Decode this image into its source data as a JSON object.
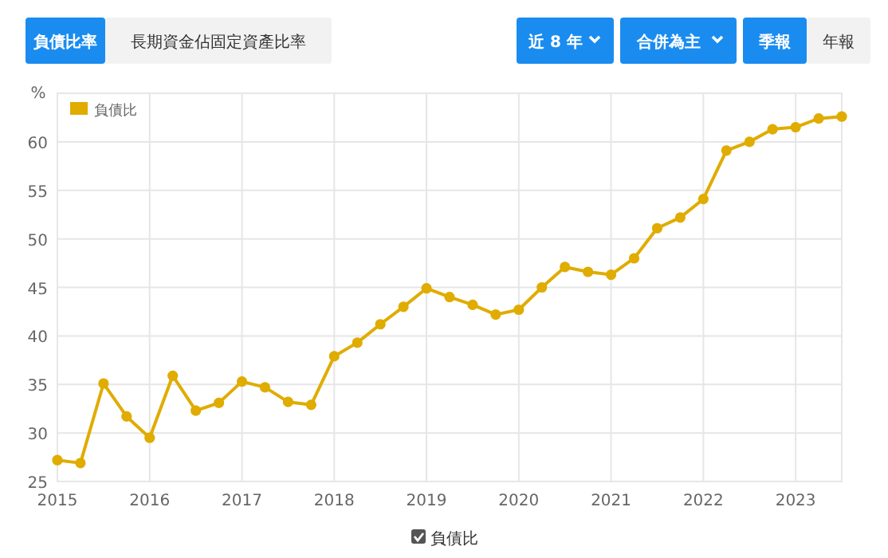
{
  "chart_data": {
    "type": "line",
    "ylabel": "%",
    "annotations": [
      "負債比率",
      "長期資金佔固定資產比率",
      "近 8 年",
      "合併為主",
      "季報",
      "年報"
    ],
    "x": [
      2015,
      2015.25,
      2015.5,
      2015.75,
      2016,
      2016.25,
      2016.5,
      2016.75,
      2017,
      2017.25,
      2017.5,
      2017.75,
      2018,
      2018.25,
      2018.5,
      2018.75,
      2019,
      2019.25,
      2019.5,
      2019.75,
      2020,
      2020.25,
      2020.5,
      2020.75,
      2021,
      2021.25,
      2021.5,
      2021.75,
      2022,
      2022.25,
      2022.5,
      2022.75,
      2023,
      2023.25,
      2023.5
    ],
    "series": [
      {
        "name": "負債比",
        "color": "#e0ac00",
        "values": [
          27.2,
          26.9,
          35.1,
          31.7,
          29.5,
          35.9,
          32.3,
          33.1,
          35.3,
          34.7,
          33.2,
          32.9,
          37.9,
          39.3,
          41.2,
          43.0,
          44.9,
          44.0,
          43.2,
          42.2,
          42.7,
          45.0,
          47.1,
          46.6,
          46.3,
          48.0,
          51.1,
          52.2,
          54.1,
          59.1,
          60.0,
          61.3,
          61.5,
          62.4,
          62.6
        ]
      }
    ],
    "xlim": [
      2015,
      2023.5
    ],
    "xticks": [
      2015,
      2016,
      2017,
      2018,
      2019,
      2020,
      2021,
      2022,
      2023
    ],
    "ylim": [
      25,
      65
    ],
    "yticks": [
      25,
      30,
      35,
      40,
      45,
      50,
      55,
      60
    ],
    "grid": true,
    "legend": "top left",
    "marker": "circle",
    "line_style": "solid"
  }
}
